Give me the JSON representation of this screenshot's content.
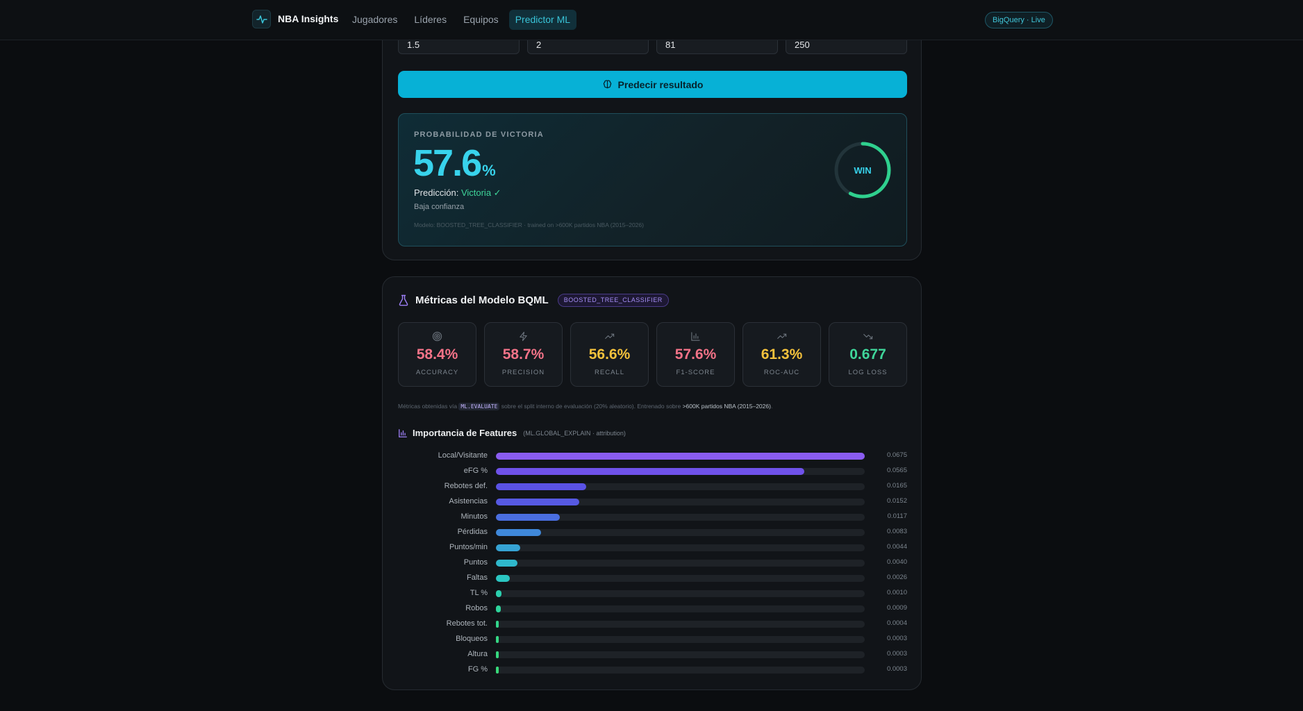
{
  "nav": {
    "brand": "NBA Insights",
    "links": [
      {
        "label": "Jugadores",
        "active": false
      },
      {
        "label": "Líderes",
        "active": false
      },
      {
        "label": "Equipos",
        "active": false
      },
      {
        "label": "Predictor ML",
        "active": true
      }
    ],
    "live_badge": "BigQuery · Live"
  },
  "predictor": {
    "inputs": [
      "1.5",
      "2",
      "81",
      "250"
    ],
    "button_label": "Predecir resultado",
    "result": {
      "label": "PROBABILIDAD DE VICTORIA",
      "probability": "57.6",
      "probability_value": 57.6,
      "percent_sign": "%",
      "prediction_label": "Predicción:",
      "prediction_value": "Victoria ✓",
      "confidence": "Baja confianza",
      "model_note": "Modelo: BOOSTED_TREE_CLASSIFIER · trained on >600K partidos NBA (2015–2026)",
      "gauge_text": "WIN"
    }
  },
  "metrics": {
    "title": "Métricas del Modelo BQML",
    "badge": "BOOSTED_TREE_CLASSIFIER",
    "cards": [
      {
        "icon": "target-icon",
        "value": "58.4%",
        "label": "ACCURACY",
        "color": "#f47388"
      },
      {
        "icon": "bolt-icon",
        "value": "58.7%",
        "label": "PRECISION",
        "color": "#f47388"
      },
      {
        "icon": "trend-up-icon",
        "value": "56.6%",
        "label": "RECALL",
        "color": "#f5c23c"
      },
      {
        "icon": "bar-chart-icon",
        "value": "57.6%",
        "label": "F1-SCORE",
        "color": "#f47388"
      },
      {
        "icon": "trend-up-icon",
        "value": "61.3%",
        "label": "ROC-AUC",
        "color": "#f5c23c"
      },
      {
        "icon": "trend-down-icon",
        "value": "0.677",
        "label": "LOG LOSS",
        "color": "#3fd59a"
      }
    ],
    "note_pre": "Métricas obtenidas vía ",
    "note_code": "ML.EVALUATE",
    "note_mid": " sobre el split interno de evaluación (20% aleatorio). Entrenado sobre ",
    "note_bold": ">600K partidos NBA (2015–2026)",
    "note_end": "."
  },
  "importance": {
    "title": "Importancia de Features",
    "subtitle": "(ML.GLOBAL_EXPLAIN · attribution)",
    "features": [
      {
        "name": "Local/Visitante",
        "value": 0.0675,
        "label": "0.0675",
        "color": "#8a5cf0"
      },
      {
        "name": "eFG %",
        "value": 0.0565,
        "label": "0.0565",
        "color": "#6f52ea"
      },
      {
        "name": "Rebotes def.",
        "value": 0.0165,
        "label": "0.0165",
        "color": "#5a52e6"
      },
      {
        "name": "Asistencias",
        "value": 0.0152,
        "label": "0.0152",
        "color": "#5659e2"
      },
      {
        "name": "Minutos",
        "value": 0.0117,
        "label": "0.0117",
        "color": "#4a6ee0"
      },
      {
        "name": "Pérdidas",
        "value": 0.0083,
        "label": "0.0083",
        "color": "#3f88da"
      },
      {
        "name": "Puntos/min",
        "value": 0.0044,
        "label": "0.0044",
        "color": "#36a3d4"
      },
      {
        "name": "Puntos",
        "value": 0.004,
        "label": "0.0040",
        "color": "#2fb8cc"
      },
      {
        "name": "Faltas",
        "value": 0.0026,
        "label": "0.0026",
        "color": "#2bc6c2"
      },
      {
        "name": "TL %",
        "value": 0.001,
        "label": "0.0010",
        "color": "#2bcfae"
      },
      {
        "name": "Robos",
        "value": 0.0009,
        "label": "0.0009",
        "color": "#2ed49b"
      },
      {
        "name": "Rebotes tot.",
        "value": 0.0004,
        "label": "0.0004",
        "color": "#33d68c"
      },
      {
        "name": "Bloqueos",
        "value": 0.0003,
        "label": "0.0003",
        "color": "#35d884"
      },
      {
        "name": "Altura",
        "value": 0.0003,
        "label": "0.0003",
        "color": "#36d97f"
      },
      {
        "name": "FG %",
        "value": 0.0003,
        "label": "0.0003",
        "color": "#38da7a"
      }
    ]
  }
}
